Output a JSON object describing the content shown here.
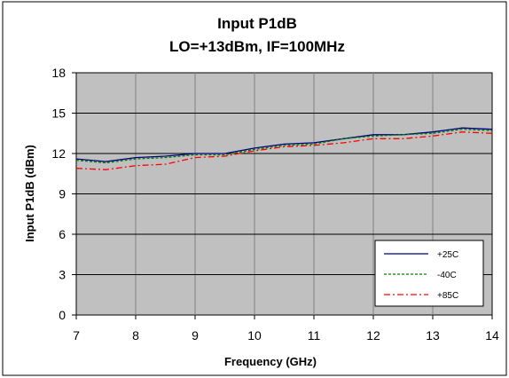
{
  "chart_data": {
    "type": "line",
    "title": "Input P1dB",
    "subtitle": "LO=+13dBm, IF=100MHz",
    "xlabel": "Frequency (GHz)",
    "ylabel": "Input P1dB (dBm)",
    "xlim": [
      7,
      14
    ],
    "ylim": [
      0,
      18
    ],
    "xticks": [
      7,
      8,
      9,
      10,
      11,
      12,
      13,
      14
    ],
    "yticks": [
      0,
      3,
      6,
      9,
      12,
      15,
      18
    ],
    "grid": true,
    "legend_position": "bottom-right",
    "plot_background": "#c0c0c0",
    "x": [
      7.0,
      7.5,
      8.0,
      8.5,
      9.0,
      9.5,
      10.0,
      10.5,
      11.0,
      11.5,
      12.0,
      12.5,
      13.0,
      13.5,
      14.0
    ],
    "series": [
      {
        "name": "+25C",
        "color": "#000080",
        "dash": "solid",
        "values": [
          11.6,
          11.4,
          11.7,
          11.8,
          12.0,
          12.0,
          12.4,
          12.7,
          12.8,
          13.1,
          13.4,
          13.4,
          13.6,
          13.9,
          13.8
        ]
      },
      {
        "name": "-40C",
        "color": "#008000",
        "dash": "dashed",
        "values": [
          11.5,
          11.3,
          11.6,
          11.7,
          11.9,
          11.9,
          12.3,
          12.6,
          12.7,
          13.1,
          13.3,
          13.4,
          13.5,
          13.8,
          13.7
        ]
      },
      {
        "name": "+85C",
        "color": "#ff0000",
        "dash": "dashdot",
        "values": [
          10.9,
          10.8,
          11.1,
          11.2,
          11.7,
          11.8,
          12.2,
          12.5,
          12.6,
          12.8,
          13.1,
          13.1,
          13.3,
          13.6,
          13.5
        ]
      }
    ]
  }
}
